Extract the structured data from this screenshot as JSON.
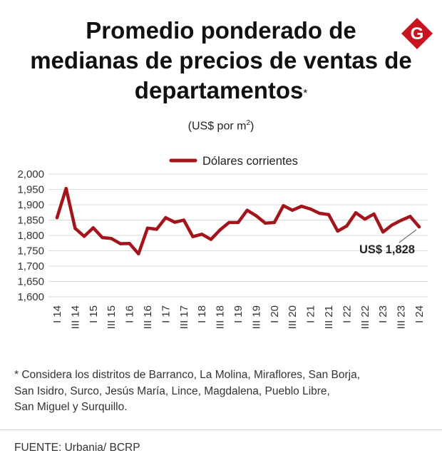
{
  "title": {
    "line1": "Promedio ponderado de",
    "line2": "medianas de precios de ventas de",
    "line3": "departamentos",
    "mark": "*"
  },
  "logo_letter": "G",
  "subtitle": {
    "text": "(US$ por m",
    "sup": "2",
    "close": ")"
  },
  "colors": {
    "line": "#a3141c",
    "grid": "#d9d9d9",
    "logo": "#c8141e"
  },
  "chart_data": {
    "type": "line",
    "legend": {
      "label": "Dólares corrientes",
      "position": "top-center"
    },
    "ylim": [
      1600,
      2000
    ],
    "yticks": [
      "2,000",
      "1,950",
      "1,900",
      "1,850",
      "1,800",
      "1,750",
      "1,700",
      "1,650",
      "1,600"
    ],
    "ytick_values": [
      2000,
      1950,
      1900,
      1850,
      1800,
      1750,
      1700,
      1650,
      1600
    ],
    "x_tick_labels": [
      "I 14",
      "III 14",
      "I 15",
      "III 15",
      "I 16",
      "III 16",
      "I 17",
      "III 17",
      "I 18",
      "III 18",
      "I 19",
      "III 19",
      "I 20",
      "III 20",
      "I 21",
      "III 21",
      "I 22",
      "III 22",
      "I 23",
      "III 23",
      "I 24"
    ],
    "grid": true,
    "series": [
      {
        "name": "Dólares corrientes",
        "values": [
          1858,
          1953,
          1823,
          1797,
          1825,
          1793,
          1790,
          1773,
          1774,
          1740,
          1824,
          1820,
          1858,
          1843,
          1850,
          1796,
          1804,
          1787,
          1818,
          1842,
          1842,
          1882,
          1864,
          1840,
          1842,
          1897,
          1882,
          1895,
          1886,
          1872,
          1868,
          1814,
          1831,
          1874,
          1853,
          1870,
          1811,
          1834,
          1849,
          1862,
          1828
        ]
      }
    ],
    "annotation": {
      "text": "US$ 1,828"
    }
  },
  "footnote": {
    "line1": "* Considera los distritos de Barranco, La Molina, Miraflores, San Borja,",
    "line2": "San Isidro, Surco,  Jesús María, Lince, Magdalena, Pueblo Libre,",
    "line3": "San Miguel y Surquillo."
  },
  "source": "FUENTE: Urbania/ BCRP"
}
